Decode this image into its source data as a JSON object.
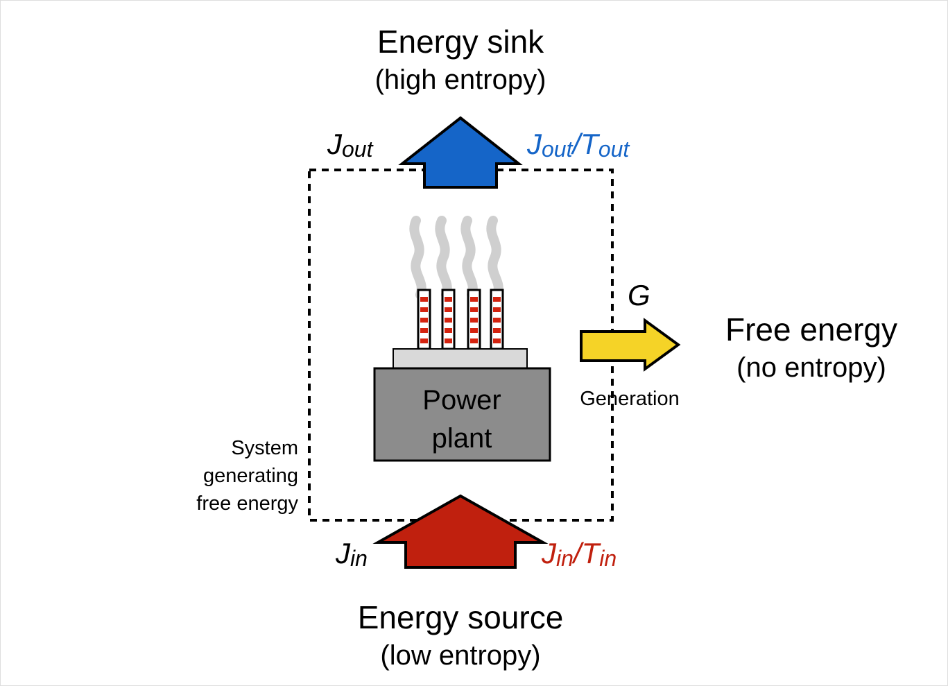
{
  "sink": {
    "title": "Energy sink",
    "subtitle": "(high entropy)"
  },
  "source": {
    "title": "Energy source",
    "subtitle": "(low entropy)"
  },
  "free_energy": {
    "title": "Free energy",
    "subtitle": "(no entropy)"
  },
  "plant": {
    "lines": [
      "Power",
      "plant"
    ]
  },
  "system": {
    "lines": [
      "System",
      "generating",
      "free energy"
    ]
  },
  "generation": "Generation",
  "g_label": "G",
  "j_out": {
    "base": "J",
    "sub": "out"
  },
  "j_out_t_out": {
    "parts": [
      {
        "base": "J",
        "sub": "out"
      },
      {
        "base": "/T",
        "sub": "out"
      }
    ]
  },
  "j_in": {
    "base": "J",
    "sub": "in"
  },
  "j_in_t_in": {
    "parts": [
      {
        "base": "J",
        "sub": "in"
      },
      {
        "base": "/T",
        "sub": "in"
      }
    ]
  }
}
